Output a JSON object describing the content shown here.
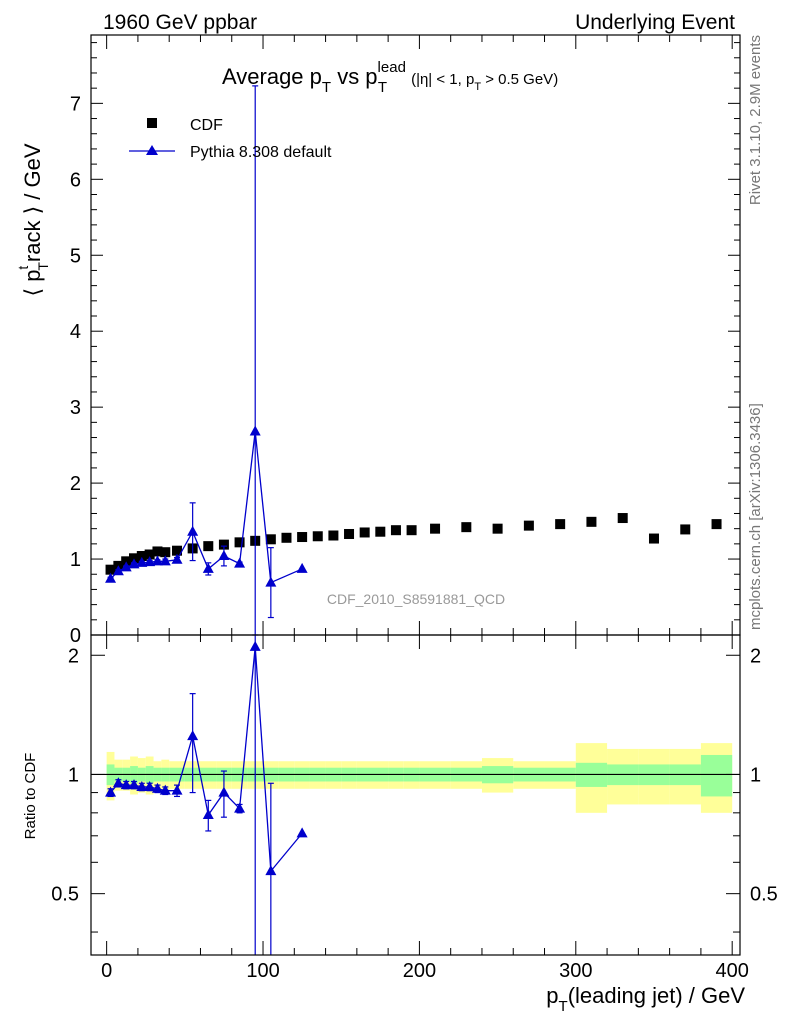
{
  "header": {
    "left": "1960 GeV ppbar",
    "right": "Underlying Event"
  },
  "side_notes": {
    "rivet": "Rivet 3.1.10,  2.9M events",
    "source": "mcplots.cern.ch [arXiv:1306.3436]"
  },
  "analysis_id": "CDF_2010_S8591881_QCD",
  "chart_data": [
    {
      "type": "scatter",
      "title": "Average p_T vs p_T^lead (|η| < 1, p_T > 0.5 GeV)",
      "title_parts": {
        "main": "Average p",
        "sub1": "T",
        "mid": " vs p",
        "sup": "lead",
        "sub2": "T",
        "cut_pre": "(|η| < 1, p",
        "cut_sub": "T",
        "cut_post": " > 0.5 GeV)"
      },
      "ylabel": "⟨ p_T^track ⟩ / GeV",
      "ylabel_parts": {
        "open": "⟨ p",
        "sup": "t",
        "sub": "T",
        "rest": "rack ⟩ / GeV"
      },
      "xlim": [
        -10,
        405
      ],
      "ylim": [
        0,
        7.9
      ],
      "yticks": [
        0,
        1,
        2,
        3,
        4,
        5,
        6,
        7
      ],
      "series": [
        {
          "name": "CDF",
          "marker": "square",
          "color": "#000000",
          "x": [
            2.5,
            7.5,
            12.5,
            17.5,
            22.5,
            27.5,
            32.5,
            37.5,
            45,
            55,
            65,
            75,
            85,
            95,
            105,
            115,
            125,
            135,
            145,
            155,
            165,
            175,
            185,
            195,
            210,
            230,
            250,
            270,
            290,
            310,
            330,
            350,
            370,
            390
          ],
          "y": [
            0.86,
            0.91,
            0.97,
            1.01,
            1.04,
            1.06,
            1.1,
            1.09,
            1.11,
            1.14,
            1.17,
            1.19,
            1.22,
            1.24,
            1.26,
            1.28,
            1.29,
            1.3,
            1.31,
            1.33,
            1.35,
            1.36,
            1.38,
            1.38,
            1.4,
            1.42,
            1.4,
            1.44,
            1.46,
            1.49,
            1.54,
            1.27,
            1.39,
            1.46
          ]
        },
        {
          "name": "Pythia 8.308 default",
          "marker": "triangle",
          "color": "#0000cc",
          "x": [
            2.5,
            7.5,
            12.5,
            17.5,
            22.5,
            27.5,
            32.5,
            37.5,
            45,
            55,
            65,
            75,
            85,
            95,
            105,
            125
          ],
          "y": [
            0.74,
            0.84,
            0.89,
            0.93,
            0.95,
            0.96,
            0.97,
            0.97,
            0.99,
            1.36,
            0.87,
            1.04,
            0.94,
            2.68,
            0.69,
            0.87
          ],
          "yerr": [
            0.02,
            0.02,
            0.02,
            0.02,
            0.02,
            0.02,
            0.02,
            0.03,
            0.03,
            0.38,
            0.08,
            0.13,
            0.02,
            4.55,
            0.46,
            0.0
          ]
        }
      ]
    },
    {
      "type": "scatter",
      "ylabel": "Ratio to CDF",
      "xlabel": "p_T(leading jet) / GeV",
      "xlabel_parts": {
        "main": "p",
        "sub": "T",
        "rest": "(leading jet) / GeV"
      },
      "xlim": [
        -10,
        405
      ],
      "xticks": [
        0,
        100,
        200,
        300,
        400
      ],
      "ylim": [
        0.35,
        2.25
      ],
      "yticks": [
        0.5,
        1,
        2
      ],
      "yticks_labels": [
        "0.5",
        "1",
        "2"
      ],
      "band_colors": {
        "outer": "#ffff99",
        "inner": "#99ff99"
      },
      "bands": {
        "x_edges": [
          0,
          5,
          10,
          15,
          20,
          25,
          30,
          35,
          40,
          50,
          60,
          70,
          80,
          90,
          100,
          110,
          120,
          130,
          140,
          150,
          160,
          170,
          180,
          190,
          200,
          220,
          240,
          260,
          280,
          300,
          320,
          340,
          360,
          380,
          400
        ],
        "outer": [
          0.14,
          0.09,
          0.09,
          0.11,
          0.1,
          0.11,
          0.08,
          0.09,
          0.08,
          0.08,
          0.08,
          0.08,
          0.08,
          0.08,
          0.08,
          0.08,
          0.08,
          0.08,
          0.08,
          0.08,
          0.08,
          0.08,
          0.08,
          0.08,
          0.08,
          0.08,
          0.1,
          0.08,
          0.08,
          0.2,
          0.16,
          0.16,
          0.16,
          0.2
        ],
        "inner": [
          0.06,
          0.04,
          0.04,
          0.05,
          0.04,
          0.05,
          0.04,
          0.04,
          0.04,
          0.04,
          0.04,
          0.04,
          0.04,
          0.04,
          0.04,
          0.04,
          0.04,
          0.04,
          0.04,
          0.04,
          0.04,
          0.04,
          0.04,
          0.04,
          0.04,
          0.04,
          0.05,
          0.04,
          0.04,
          0.07,
          0.06,
          0.06,
          0.06,
          0.12
        ]
      },
      "series": [
        {
          "name": "Pythia 8.308 default",
          "marker": "triangle",
          "color": "#0000cc",
          "x": [
            2.5,
            7.5,
            12.5,
            17.5,
            22.5,
            27.5,
            32.5,
            37.5,
            45,
            55,
            65,
            75,
            85,
            95,
            105,
            125
          ],
          "y": [
            0.9,
            0.95,
            0.94,
            0.94,
            0.93,
            0.93,
            0.92,
            0.91,
            0.91,
            1.25,
            0.79,
            0.9,
            0.82,
            2.1,
            0.57,
            0.71
          ],
          "yerr": [
            0.02,
            0.02,
            0.02,
            0.02,
            0.02,
            0.02,
            0.02,
            0.02,
            0.03,
            0.35,
            0.07,
            0.12,
            0.02,
            3.7,
            0.38,
            0.0
          ]
        }
      ]
    }
  ]
}
